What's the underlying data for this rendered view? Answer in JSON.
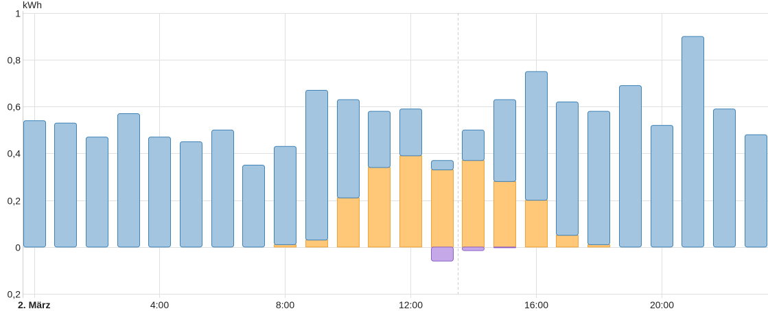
{
  "chart_data": {
    "type": "bar",
    "stacked": true,
    "ylabel": "kWh",
    "ylim": [
      -0.2,
      1
    ],
    "yticks": [
      {
        "value": 1,
        "label": "1"
      },
      {
        "value": 0.8,
        "label": "0,8"
      },
      {
        "value": 0.6,
        "label": "0,6"
      },
      {
        "value": 0.4,
        "label": "0,4"
      },
      {
        "value": 0.2,
        "label": "0,2"
      },
      {
        "value": 0,
        "label": "0"
      },
      {
        "value": -0.2,
        "label": "0,2"
      }
    ],
    "xticks": [
      {
        "hour": 0,
        "label": "2. März",
        "bold": true
      },
      {
        "hour": 4,
        "label": "4:00"
      },
      {
        "hour": 8,
        "label": "8:00"
      },
      {
        "hour": 12,
        "label": "12:00"
      },
      {
        "hour": 16,
        "label": "16:00"
      },
      {
        "hour": 20,
        "label": "20:00"
      }
    ],
    "hours": [
      0,
      1,
      2,
      3,
      4,
      5,
      6,
      7,
      8,
      9,
      10,
      11,
      12,
      13,
      14,
      15,
      16,
      17,
      18,
      19,
      20,
      21,
      22,
      23
    ],
    "now_marker_hour": 14,
    "grid": true,
    "series": [
      {
        "key": "solar",
        "color": "#ffc878",
        "border": "#f1a23a",
        "values": [
          0,
          0,
          0,
          0,
          0,
          0,
          0,
          0,
          0.01,
          0.03,
          0.21,
          0.34,
          0.39,
          0.33,
          0.37,
          0.28,
          0.2,
          0.05,
          0.01,
          0,
          0,
          0,
          0,
          0
        ]
      },
      {
        "key": "grid",
        "color": "#a4c5e0",
        "border": "#3e82b6",
        "values": [
          0.54,
          0.53,
          0.47,
          0.57,
          0.47,
          0.45,
          0.5,
          0.35,
          0.42,
          0.64,
          0.42,
          0.24,
          0.2,
          0.04,
          0.13,
          0.35,
          0.55,
          0.57,
          0.57,
          0.69,
          0.52,
          0.9,
          0.59,
          0.48
        ]
      },
      {
        "key": "battery",
        "color": "#c5a8e8",
        "border": "#8c5fc8",
        "values": [
          0,
          0,
          0,
          0,
          0,
          0,
          0,
          0,
          0,
          0,
          0,
          0,
          0,
          -0.06,
          -0.015,
          -0.003,
          0,
          0,
          0,
          0,
          0,
          0,
          0,
          0
        ]
      }
    ]
  }
}
